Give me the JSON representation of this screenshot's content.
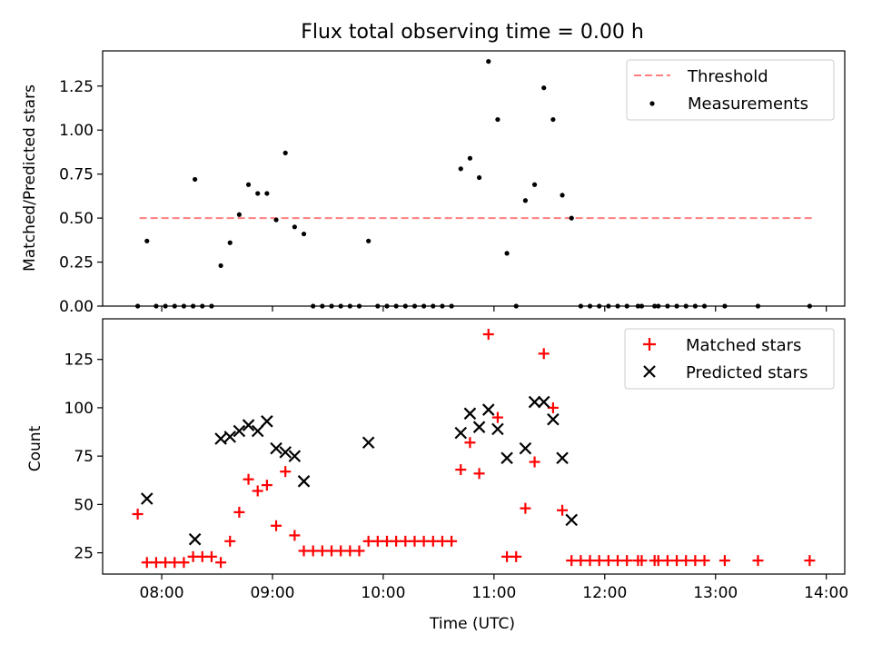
{
  "title": "Flux total observing time = 0.00 h",
  "chart_data": [
    {
      "type": "scatter",
      "ylabel": "Matched/Predicted stars",
      "xlabel": "",
      "xlim": [
        "07:28",
        "14:10"
      ],
      "ylim": [
        0,
        1.45
      ],
      "yticks": [
        0.0,
        0.25,
        0.5,
        0.75,
        1.0,
        1.25
      ],
      "ytick_labels": [
        "0.00",
        "0.25",
        "0.50",
        "0.75",
        "1.00",
        "1.25"
      ],
      "legend_position": "top-right",
      "threshold": {
        "name": "Threshold",
        "value": 0.5,
        "x_start": "07:48",
        "x_end": "13:53",
        "color": "#ff7f7f"
      },
      "series": [
        {
          "name": "Measurements",
          "marker": "dot",
          "color": "#000000",
          "points": [
            [
              "07:47",
              0
            ],
            [
              "07:52",
              0.37
            ],
            [
              "07:57",
              0
            ],
            [
              "08:02",
              0
            ],
            [
              "08:07",
              0
            ],
            [
              "08:12",
              0
            ],
            [
              "08:17",
              0
            ],
            [
              "08:18",
              0.72
            ],
            [
              "08:22",
              0
            ],
            [
              "08:27",
              0
            ],
            [
              "08:32",
              0.23
            ],
            [
              "08:37",
              0.36
            ],
            [
              "08:42",
              0.52
            ],
            [
              "08:47",
              0.69
            ],
            [
              "08:52",
              0.64
            ],
            [
              "08:57",
              0.64
            ],
            [
              "09:02",
              0.49
            ],
            [
              "09:07",
              0.87
            ],
            [
              "09:12",
              0.45
            ],
            [
              "09:17",
              0.41
            ],
            [
              "09:22",
              0
            ],
            [
              "09:27",
              0
            ],
            [
              "09:32",
              0
            ],
            [
              "09:37",
              0
            ],
            [
              "09:42",
              0
            ],
            [
              "09:47",
              0
            ],
            [
              "09:52",
              0.37
            ],
            [
              "09:57",
              0
            ],
            [
              "10:02",
              0
            ],
            [
              "10:07",
              0
            ],
            [
              "10:12",
              0
            ],
            [
              "10:17",
              0
            ],
            [
              "10:22",
              0
            ],
            [
              "10:27",
              0
            ],
            [
              "10:32",
              0
            ],
            [
              "10:37",
              0
            ],
            [
              "10:42",
              0.78
            ],
            [
              "10:47",
              0.84
            ],
            [
              "10:52",
              0.73
            ],
            [
              "10:57",
              1.39
            ],
            [
              "11:02",
              1.06
            ],
            [
              "11:07",
              0.3
            ],
            [
              "11:12",
              0
            ],
            [
              "11:17",
              0.6
            ],
            [
              "11:22",
              0.69
            ],
            [
              "11:27",
              1.24
            ],
            [
              "11:32",
              1.06
            ],
            [
              "11:37",
              0.63
            ],
            [
              "11:42",
              0.5
            ],
            [
              "11:47",
              0
            ],
            [
              "11:52",
              0
            ],
            [
              "11:57",
              0
            ],
            [
              "12:02",
              0
            ],
            [
              "12:07",
              0
            ],
            [
              "12:12",
              0
            ],
            [
              "12:18",
              0
            ],
            [
              "12:20",
              0
            ],
            [
              "12:27",
              0
            ],
            [
              "12:29",
              0
            ],
            [
              "12:34",
              0
            ],
            [
              "12:39",
              0
            ],
            [
              "12:44",
              0
            ],
            [
              "12:49",
              0
            ],
            [
              "12:54",
              0
            ],
            [
              "13:05",
              0
            ],
            [
              "13:23",
              0
            ],
            [
              "13:51",
              0
            ]
          ]
        }
      ]
    },
    {
      "type": "scatter",
      "ylabel": "Count",
      "xlabel": "Time (UTC)",
      "xlim": [
        "07:28",
        "14:10"
      ],
      "ylim": [
        14,
        146
      ],
      "yticks": [
        25,
        50,
        75,
        100,
        125
      ],
      "ytick_labels": [
        "25",
        "50",
        "75",
        "100",
        "125"
      ],
      "xticks": [
        "08:00",
        "09:00",
        "10:00",
        "11:00",
        "12:00",
        "13:00",
        "14:00"
      ],
      "xtick_labels": [
        "08:00",
        "09:00",
        "10:00",
        "11:00",
        "12:00",
        "13:00",
        "14:00"
      ],
      "legend_position": "top-right",
      "series": [
        {
          "name": "Matched stars",
          "marker": "plus",
          "color": "#ff0000",
          "points": [
            [
              "07:47",
              45
            ],
            [
              "07:52",
              20
            ],
            [
              "07:57",
              20
            ],
            [
              "08:02",
              20
            ],
            [
              "08:07",
              20
            ],
            [
              "08:12",
              20
            ],
            [
              "08:17",
              23
            ],
            [
              "08:22",
              23
            ],
            [
              "08:27",
              23
            ],
            [
              "08:32",
              20
            ],
            [
              "08:37",
              31
            ],
            [
              "08:42",
              46
            ],
            [
              "08:47",
              63
            ],
            [
              "08:52",
              57
            ],
            [
              "08:57",
              60
            ],
            [
              "09:02",
              39
            ],
            [
              "09:07",
              67
            ],
            [
              "09:12",
              34
            ],
            [
              "09:17",
              26
            ],
            [
              "09:22",
              26
            ],
            [
              "09:27",
              26
            ],
            [
              "09:32",
              26
            ],
            [
              "09:37",
              26
            ],
            [
              "09:42",
              26
            ],
            [
              "09:47",
              26
            ],
            [
              "09:52",
              31
            ],
            [
              "09:57",
              31
            ],
            [
              "10:02",
              31
            ],
            [
              "10:07",
              31
            ],
            [
              "10:12",
              31
            ],
            [
              "10:17",
              31
            ],
            [
              "10:22",
              31
            ],
            [
              "10:27",
              31
            ],
            [
              "10:32",
              31
            ],
            [
              "10:37",
              31
            ],
            [
              "10:42",
              68
            ],
            [
              "10:47",
              82
            ],
            [
              "10:52",
              66
            ],
            [
              "10:57",
              138
            ],
            [
              "11:02",
              95
            ],
            [
              "11:07",
              23
            ],
            [
              "11:12",
              23
            ],
            [
              "11:17",
              48
            ],
            [
              "11:22",
              72
            ],
            [
              "11:27",
              128
            ],
            [
              "11:32",
              100
            ],
            [
              "11:37",
              47
            ],
            [
              "11:42",
              21
            ],
            [
              "11:47",
              21
            ],
            [
              "11:52",
              21
            ],
            [
              "11:57",
              21
            ],
            [
              "12:02",
              21
            ],
            [
              "12:07",
              21
            ],
            [
              "12:12",
              21
            ],
            [
              "12:18",
              21
            ],
            [
              "12:20",
              21
            ],
            [
              "12:27",
              21
            ],
            [
              "12:29",
              21
            ],
            [
              "12:34",
              21
            ],
            [
              "12:39",
              21
            ],
            [
              "12:44",
              21
            ],
            [
              "12:49",
              21
            ],
            [
              "12:54",
              21
            ],
            [
              "13:05",
              21
            ],
            [
              "13:23",
              21
            ],
            [
              "13:51",
              21
            ]
          ]
        },
        {
          "name": "Predicted stars",
          "marker": "x",
          "color": "#000000",
          "points": [
            [
              "07:52",
              53
            ],
            [
              "08:18",
              32
            ],
            [
              "08:32",
              84
            ],
            [
              "08:37",
              85
            ],
            [
              "08:42",
              88
            ],
            [
              "08:47",
              91
            ],
            [
              "08:52",
              88
            ],
            [
              "08:57",
              93
            ],
            [
              "09:02",
              79
            ],
            [
              "09:07",
              77
            ],
            [
              "09:12",
              75
            ],
            [
              "09:17",
              62
            ],
            [
              "09:52",
              82
            ],
            [
              "10:42",
              87
            ],
            [
              "10:47",
              97
            ],
            [
              "10:52",
              90
            ],
            [
              "10:57",
              99
            ],
            [
              "11:02",
              89
            ],
            [
              "11:07",
              74
            ],
            [
              "11:17",
              79
            ],
            [
              "11:22",
              103
            ],
            [
              "11:27",
              103
            ],
            [
              "11:32",
              94
            ],
            [
              "11:37",
              74
            ],
            [
              "11:42",
              42
            ]
          ]
        }
      ]
    }
  ]
}
